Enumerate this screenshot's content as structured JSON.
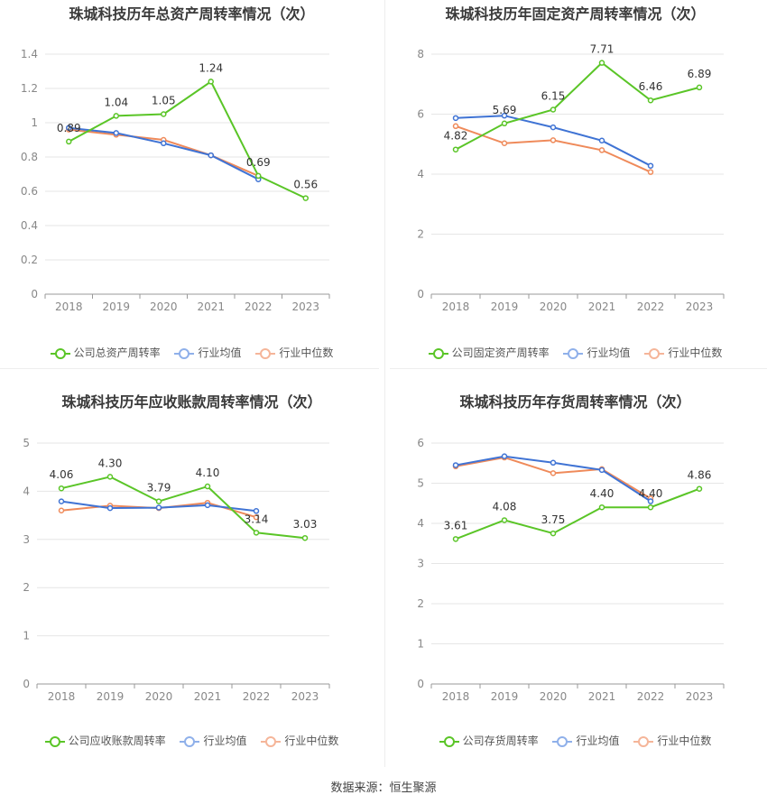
{
  "source": "数据来源：恒生聚源",
  "colors": {
    "company": "#5ac527",
    "avg": "#3f73d4",
    "median": "#ef8a5a",
    "grid": "#e6e6e6",
    "axis": "#999999",
    "tick": "#888888",
    "label": "#333333"
  },
  "legend_labels": [
    "公司总资产周转率",
    "公司固定资产周转率",
    "公司应收账款周转率",
    "公司存货周转率"
  ],
  "legend_common": {
    "avg": "行业均值",
    "median": "行业中位数"
  },
  "chart_data": [
    {
      "type": "line",
      "title": "珠城科技历年总资产周转率情况（次）",
      "categories": [
        "2018",
        "2019",
        "2020",
        "2021",
        "2022",
        "2023"
      ],
      "ylim": [
        0,
        1.4
      ],
      "yticks": [
        "0",
        "0.2",
        "0.4",
        "0.6",
        "0.8",
        "1",
        "1.2",
        "1.4"
      ],
      "grid": true,
      "legend_position": "bottom",
      "series": [
        {
          "name": "公司总资产周转率",
          "values": [
            0.89,
            1.04,
            1.05,
            1.24,
            0.69,
            0.56
          ],
          "labels": [
            "0.89",
            "1.04",
            "1.05",
            "1.24",
            "0.69",
            "0.56"
          ]
        },
        {
          "name": "行业均值",
          "values": [
            0.97,
            0.94,
            0.88,
            0.81,
            0.67,
            null
          ]
        },
        {
          "name": "行业中位数",
          "values": [
            0.96,
            0.93,
            0.9,
            0.81,
            0.69,
            null
          ]
        }
      ]
    },
    {
      "type": "line",
      "title": "珠城科技历年固定资产周转率情况（次）",
      "categories": [
        "2018",
        "2019",
        "2020",
        "2021",
        "2022",
        "2023"
      ],
      "ylim": [
        0,
        8
      ],
      "yticks": [
        "0",
        "2",
        "4",
        "6",
        "8"
      ],
      "grid": true,
      "legend_position": "bottom",
      "series": [
        {
          "name": "公司固定资产周转率",
          "values": [
            4.82,
            5.69,
            6.15,
            7.71,
            6.46,
            6.89
          ],
          "labels": [
            "4.82",
            "5.69",
            "6.15",
            "7.71",
            "6.46",
            "6.89"
          ]
        },
        {
          "name": "行业均值",
          "values": [
            5.87,
            5.95,
            5.56,
            5.12,
            4.28,
            null
          ]
        },
        {
          "name": "行业中位数",
          "values": [
            5.6,
            5.03,
            5.13,
            4.8,
            4.07,
            null
          ]
        }
      ]
    },
    {
      "type": "line",
      "title": "珠城科技历年应收账款周转率情况（次）",
      "categories": [
        "2018",
        "2019",
        "2020",
        "2021",
        "2022",
        "2023"
      ],
      "ylim": [
        0,
        5
      ],
      "yticks": [
        "0",
        "1",
        "2",
        "3",
        "4",
        "5"
      ],
      "grid": true,
      "legend_position": "bottom",
      "series": [
        {
          "name": "公司应收账款周转率",
          "values": [
            4.06,
            4.3,
            3.79,
            4.1,
            3.14,
            3.03
          ],
          "labels": [
            "4.06",
            "4.30",
            "3.79",
            "4.10",
            "3.14",
            "3.03"
          ]
        },
        {
          "name": "行业均值",
          "values": [
            3.79,
            3.65,
            3.66,
            3.71,
            3.59,
            null
          ]
        },
        {
          "name": "行业中位数",
          "values": [
            3.6,
            3.7,
            3.65,
            3.76,
            3.46,
            null
          ]
        }
      ]
    },
    {
      "type": "line",
      "title": "珠城科技历年存货周转率情况（次）",
      "categories": [
        "2018",
        "2019",
        "2020",
        "2021",
        "2022",
        "2023"
      ],
      "ylim": [
        0,
        6
      ],
      "yticks": [
        "0",
        "1",
        "2",
        "3",
        "4",
        "5",
        "6"
      ],
      "grid": true,
      "legend_position": "bottom",
      "series": [
        {
          "name": "公司存货周转率",
          "values": [
            3.61,
            4.08,
            3.75,
            4.4,
            4.4,
            4.86
          ],
          "labels": [
            "3.61",
            "4.08",
            "3.75",
            "4.40",
            "4.40",
            "4.86"
          ]
        },
        {
          "name": "行业均值",
          "values": [
            5.45,
            5.67,
            5.51,
            5.33,
            4.55,
            null
          ]
        },
        {
          "name": "行业中位数",
          "values": [
            5.42,
            5.64,
            5.25,
            5.35,
            4.62,
            null
          ]
        }
      ]
    }
  ]
}
